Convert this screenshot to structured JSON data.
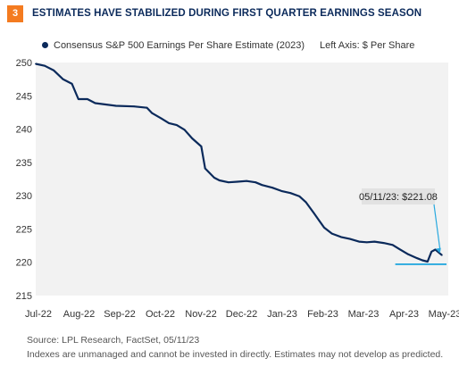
{
  "header": {
    "number": "3",
    "title": "ESTIMATES HAVE STABILIZED DURING FIRST QUARTER EARNINGS SEASON"
  },
  "legend": {
    "series_label": "Consensus S&P 500 Earnings Per Share Estimate (2023)",
    "axis_note": "Left Axis: $ Per Share"
  },
  "footer": {
    "source": "Source: LPL Research, FactSet,  05/11/23",
    "disclaimer": "Indexes are unmanaged and cannot be invested in directly. Estimates may not develop as predicted."
  },
  "colors": {
    "line": "#0b2a5b",
    "accent": "#29a9df",
    "badge": "#f47b20",
    "plot_bg": "#f2f2f2",
    "callout_bg": "#e2e2e2"
  },
  "chart_data": {
    "type": "line",
    "x_labels": [
      "Jul-22",
      "Aug-22",
      "Sep-22",
      "Oct-22",
      "Nov-22",
      "Dec-22",
      "Jan-23",
      "Feb-23",
      "Mar-23",
      "Apr-23",
      "May-23"
    ],
    "ylim": [
      215,
      250
    ],
    "yticks": [
      215,
      220,
      225,
      230,
      235,
      240,
      245,
      250
    ],
    "grid": false,
    "series": [
      {
        "name": "Consensus S&P 500 Earnings Per Share Estimate (2023)",
        "points": [
          [
            "2022-07-01",
            249.8
          ],
          [
            "2022-07-08",
            249.5
          ],
          [
            "2022-07-15",
            248.8
          ],
          [
            "2022-07-22",
            247.5
          ],
          [
            "2022-07-29",
            246.8
          ],
          [
            "2022-08-03",
            244.5
          ],
          [
            "2022-08-10",
            244.5
          ],
          [
            "2022-08-16",
            243.9
          ],
          [
            "2022-08-24",
            243.7
          ],
          [
            "2022-09-01",
            243.5
          ],
          [
            "2022-09-15",
            243.4
          ],
          [
            "2022-09-25",
            243.2
          ],
          [
            "2022-09-29",
            242.4
          ],
          [
            "2022-10-06",
            241.6
          ],
          [
            "2022-10-12",
            240.9
          ],
          [
            "2022-10-18",
            240.6
          ],
          [
            "2022-10-24",
            239.9
          ],
          [
            "2022-10-30",
            238.6
          ],
          [
            "2022-11-06",
            237.4
          ],
          [
            "2022-11-09",
            234.1
          ],
          [
            "2022-11-16",
            232.7
          ],
          [
            "2022-11-20",
            232.3
          ],
          [
            "2022-11-27",
            232.0
          ],
          [
            "2022-12-04",
            232.1
          ],
          [
            "2022-12-11",
            232.2
          ],
          [
            "2022-12-18",
            232.0
          ],
          [
            "2022-12-23",
            231.6
          ],
          [
            "2022-12-31",
            231.2
          ],
          [
            "2023-01-07",
            230.7
          ],
          [
            "2023-01-14",
            230.4
          ],
          [
            "2023-01-21",
            229.9
          ],
          [
            "2023-01-26",
            229.0
          ],
          [
            "2023-02-01",
            227.4
          ],
          [
            "2023-02-05",
            226.3
          ],
          [
            "2023-02-09",
            225.2
          ],
          [
            "2023-02-15",
            224.3
          ],
          [
            "2023-02-22",
            223.8
          ],
          [
            "2023-03-01",
            223.5
          ],
          [
            "2023-03-08",
            223.1
          ],
          [
            "2023-03-14",
            223.0
          ],
          [
            "2023-03-20",
            223.1
          ],
          [
            "2023-03-27",
            222.9
          ],
          [
            "2023-04-03",
            222.6
          ],
          [
            "2023-04-08",
            222.0
          ],
          [
            "2023-04-15",
            221.2
          ],
          [
            "2023-04-22",
            220.6
          ],
          [
            "2023-04-26",
            220.3
          ],
          [
            "2023-04-30",
            220.1
          ],
          [
            "2023-05-03",
            221.6
          ],
          [
            "2023-05-06",
            221.9
          ],
          [
            "2023-05-11",
            221.08
          ]
        ]
      }
    ],
    "annotation": {
      "text": "05/11/23: $221.08",
      "date": "2023-05-11",
      "value": 221.08
    }
  }
}
